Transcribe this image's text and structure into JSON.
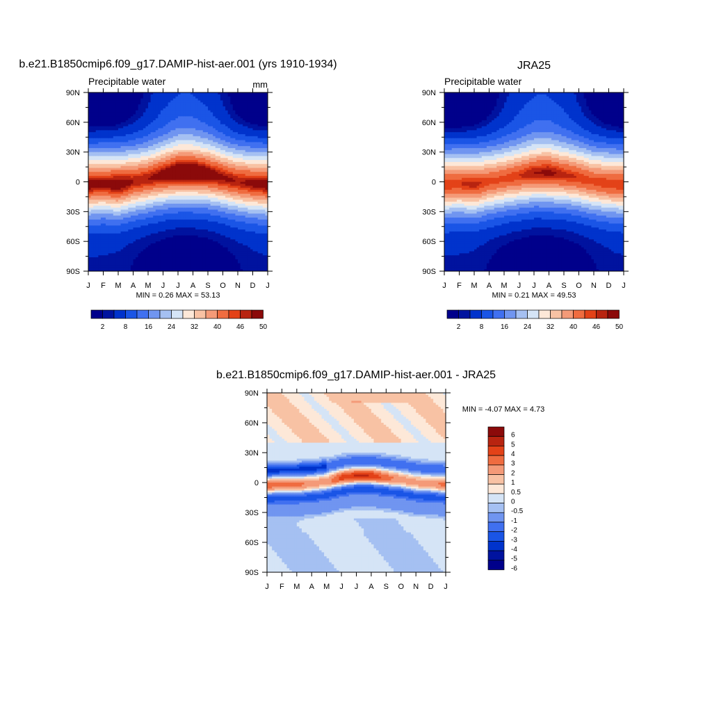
{
  "chart_data": [
    {
      "type": "heatmap",
      "title": "b.e21.B1850cmip6.f09_g17.DAMIP-hist-aer.001 (yrs 1910-1934)",
      "subtitle_left": "Precipitable water",
      "subtitle_right": "mm",
      "x_tick_labels": [
        "J",
        "F",
        "M",
        "A",
        "M",
        "J",
        "J",
        "A",
        "S",
        "O",
        "N",
        "D",
        "J"
      ],
      "y_tick_labels": [
        "90N",
        "60N",
        "30N",
        "0",
        "30S",
        "60S",
        "90S"
      ],
      "ylim": [
        -90,
        90
      ],
      "stats_text": "MIN =   0.26 MAX =  53.13",
      "min": 0.26,
      "max": 53.13,
      "colorbar": {
        "tick_labels": [
          "2",
          "8",
          "16",
          "24",
          "32",
          "40",
          "46",
          "50"
        ],
        "levels": [
          2,
          4,
          8,
          12,
          16,
          20,
          24,
          28,
          32,
          36,
          40,
          44,
          46,
          48,
          50
        ],
        "colors": [
          "#00008b",
          "#00139f",
          "#0033cc",
          "#1a55e6",
          "#4070f0",
          "#7095f0",
          "#a5c0f2",
          "#d5e4f6",
          "#fde8d8",
          "#f8c2a4",
          "#f49a78",
          "#ef6c40",
          "#e34218",
          "#b82410",
          "#8b0a0a"
        ]
      },
      "peak_lat": [
        -3,
        -2,
        -3,
        0,
        3,
        7,
        10,
        10,
        8,
        4,
        0,
        -2,
        -3
      ],
      "peak_value": [
        50,
        49,
        51,
        48,
        48,
        50,
        53,
        53,
        51,
        49,
        48,
        49,
        50
      ]
    },
    {
      "type": "heatmap",
      "title": "JRA25",
      "subtitle_left": "Precipitable water",
      "x_tick_labels": [
        "J",
        "F",
        "M",
        "A",
        "M",
        "J",
        "J",
        "A",
        "S",
        "O",
        "N",
        "D",
        "J"
      ],
      "y_tick_labels": [
        "90N",
        "60N",
        "30N",
        "0",
        "30S",
        "60S",
        "90S"
      ],
      "ylim": [
        -90,
        90
      ],
      "stats_text": "MIN =   0.21 MAX =  49.53",
      "min": 0.21,
      "max": 49.53,
      "colorbar": {
        "tick_labels": [
          "2",
          "8",
          "16",
          "24",
          "32",
          "40",
          "46",
          "50"
        ],
        "levels": [
          2,
          4,
          8,
          12,
          16,
          20,
          24,
          28,
          32,
          36,
          40,
          44,
          46,
          48,
          50
        ],
        "colors": [
          "#00008b",
          "#00139f",
          "#0033cc",
          "#1a55e6",
          "#4070f0",
          "#7095f0",
          "#a5c0f2",
          "#d5e4f6",
          "#fde8d8",
          "#f8c2a4",
          "#f49a78",
          "#ef6c40",
          "#e34218",
          "#b82410",
          "#8b0a0a"
        ]
      },
      "peak_lat": [
        -3,
        -2,
        -3,
        0,
        3,
        6,
        9,
        9,
        7,
        4,
        0,
        -2,
        -3
      ],
      "peak_value": [
        46,
        46,
        47,
        45,
        45,
        46,
        48,
        49,
        47,
        46,
        45,
        46,
        46
      ]
    },
    {
      "type": "heatmap",
      "title": "b.e21.B1850cmip6.f09_g17.DAMIP-hist-aer.001 - JRA25",
      "x_tick_labels": [
        "J",
        "F",
        "M",
        "A",
        "M",
        "J",
        "J",
        "A",
        "S",
        "O",
        "N",
        "D",
        "J"
      ],
      "y_tick_labels": [
        "90N",
        "60N",
        "30N",
        "0",
        "30S",
        "60S",
        "90S"
      ],
      "ylim": [
        -90,
        90
      ],
      "stats_text": "MIN =  -4.07 MAX =   4.73",
      "min": -4.07,
      "max": 4.73,
      "colorbar": {
        "tick_labels": [
          "6",
          "5",
          "4",
          "3",
          "2",
          "1",
          "0.5",
          "0",
          "-0.5",
          "-1",
          "-2",
          "-3",
          "-4",
          "-5",
          "-6"
        ],
        "colors": [
          "#8b0a0a",
          "#b82410",
          "#e34218",
          "#ef6c40",
          "#f49a78",
          "#f8c2a4",
          "#fde8d8",
          "#d5e4f6",
          "#a5c0f2",
          "#7095f0",
          "#4070f0",
          "#1a55e6",
          "#0033cc",
          "#00139f",
          "#00008b"
        ]
      },
      "band_lat": [
        -3,
        -2,
        -2,
        -1,
        1,
        5,
        7,
        7,
        5,
        3,
        0,
        -1,
        -2
      ],
      "band_amp": [
        3,
        3,
        3,
        2,
        2,
        4,
        4.7,
        4.5,
        3,
        2,
        2,
        2,
        3
      ]
    }
  ]
}
